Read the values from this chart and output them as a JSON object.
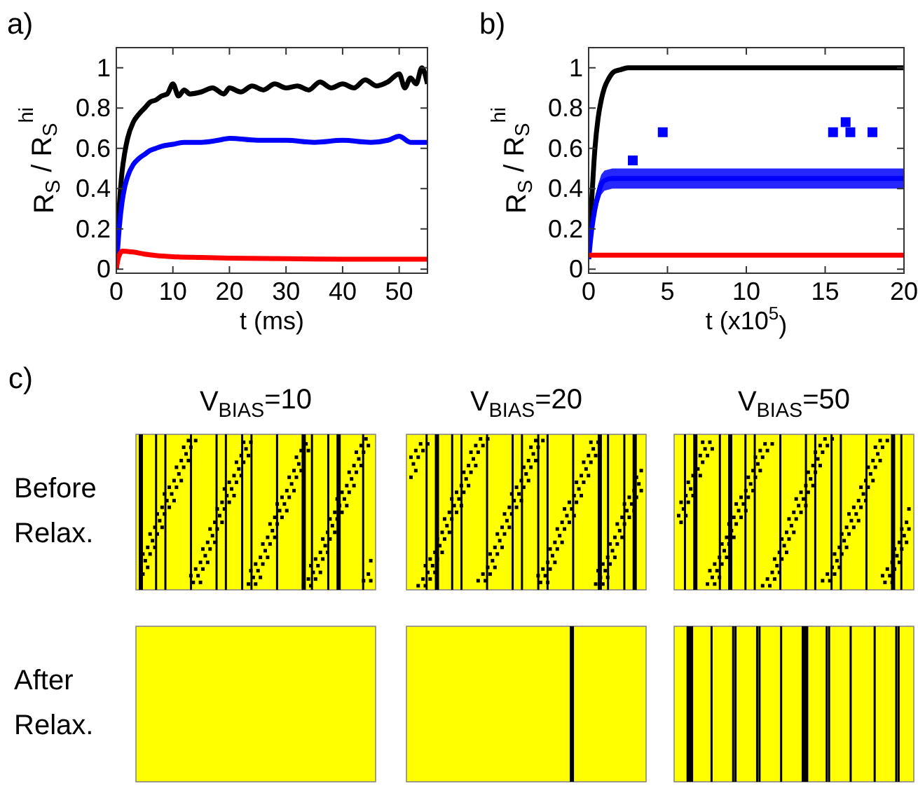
{
  "chart_data": [
    {
      "type": "line",
      "title": "a)",
      "xlabel": "t (ms)",
      "ylabel": "R$_{S}$ / R$_{S}$$^{hi}$",
      "xlim": [
        0,
        55
      ],
      "ylim": [
        -0.02,
        1.1
      ],
      "xticks": [
        0,
        10,
        20,
        30,
        40,
        50
      ],
      "yticks": [
        0,
        0.2,
        0.4,
        0.6,
        0.8,
        1
      ],
      "grid": false,
      "line_style": "solid",
      "series": [
        {
          "color": "#000000",
          "x": [
            0,
            0.5,
            1,
            1.5,
            2,
            3,
            4,
            5,
            6,
            7,
            8,
            9,
            10,
            11,
            12,
            13,
            15,
            17,
            19,
            20,
            22,
            24,
            26,
            28,
            30,
            32,
            34,
            36,
            38,
            40,
            42,
            44,
            46,
            48,
            50,
            51,
            52,
            53,
            54,
            55
          ],
          "values": [
            0,
            0.3,
            0.48,
            0.58,
            0.65,
            0.73,
            0.77,
            0.8,
            0.83,
            0.84,
            0.86,
            0.87,
            0.92,
            0.86,
            0.89,
            0.87,
            0.88,
            0.9,
            0.87,
            0.9,
            0.88,
            0.91,
            0.89,
            0.92,
            0.9,
            0.91,
            0.89,
            0.93,
            0.9,
            0.92,
            0.9,
            0.94,
            0.91,
            0.93,
            0.97,
            0.9,
            0.95,
            0.92,
            1.0,
            0.92
          ]
        },
        {
          "color": "#0000ff",
          "x": [
            0,
            0.5,
            1,
            1.5,
            2,
            3,
            4,
            5,
            6,
            7,
            8,
            10,
            12,
            15,
            18,
            20,
            25,
            30,
            35,
            40,
            45,
            48,
            50,
            52,
            55
          ],
          "values": [
            0,
            0.2,
            0.33,
            0.41,
            0.46,
            0.52,
            0.55,
            0.57,
            0.59,
            0.6,
            0.61,
            0.62,
            0.63,
            0.63,
            0.64,
            0.65,
            0.64,
            0.64,
            0.63,
            0.64,
            0.63,
            0.64,
            0.66,
            0.63,
            0.63
          ]
        },
        {
          "color": "#ff0000",
          "x": [
            0,
            0.3,
            0.7,
            1,
            2,
            3,
            5,
            7,
            10,
            15,
            20,
            30,
            40,
            55
          ],
          "values": [
            0,
            0.05,
            0.08,
            0.09,
            0.088,
            0.085,
            0.075,
            0.068,
            0.062,
            0.058,
            0.055,
            0.052,
            0.05,
            0.05
          ]
        }
      ]
    },
    {
      "type": "line",
      "title": "b)",
      "xlabel": "t (x10$^{5}$)",
      "ylabel": "R$_{S}$ / R$_{S}$$^{hi}$",
      "xlim": [
        0,
        20
      ],
      "ylim": [
        -0.02,
        1.1
      ],
      "xticks": [
        0,
        5,
        10,
        15,
        20
      ],
      "yticks": [
        0,
        0.2,
        0.4,
        0.6,
        0.8,
        1
      ],
      "grid": false,
      "line_style": "solid",
      "series": [
        {
          "color": "#000000",
          "x": [
            0,
            0.2,
            0.4,
            0.6,
            0.8,
            1,
            1.3,
            1.6,
            2,
            2.5,
            3,
            5,
            10,
            15,
            20
          ],
          "values": [
            0.05,
            0.35,
            0.6,
            0.75,
            0.84,
            0.9,
            0.95,
            0.98,
            0.99,
            1,
            1,
            1,
            1,
            1,
            1
          ]
        },
        {
          "color": "#0000ff",
          "x": [
            0,
            0.2,
            0.4,
            0.6,
            0.8,
            1,
            1.5,
            2,
            3,
            5,
            10,
            15,
            20
          ],
          "values": [
            0.05,
            0.2,
            0.3,
            0.37,
            0.42,
            0.44,
            0.45,
            0.45,
            0.45,
            0.45,
            0.45,
            0.45,
            0.45
          ],
          "lower": [
            0.05,
            0.15,
            0.25,
            0.32,
            0.37,
            0.39,
            0.4,
            0.4,
            0.4,
            0.4,
            0.4,
            0.4,
            0.4
          ],
          "upper": [
            0.05,
            0.25,
            0.35,
            0.42,
            0.47,
            0.49,
            0.5,
            0.5,
            0.5,
            0.5,
            0.5,
            0.5,
            0.5
          ]
        },
        {
          "type": "scatter",
          "marker": "square",
          "color": "#0000ff",
          "x": [
            2.8,
            4.7,
            15.5,
            16.3,
            16.6,
            18
          ],
          "values": [
            0.54,
            0.68,
            0.68,
            0.73,
            0.68,
            0.68
          ]
        },
        {
          "color": "#ff0000",
          "x": [
            0,
            20
          ],
          "values": [
            0.07,
            0.07
          ]
        }
      ]
    },
    {
      "type": "other",
      "title": "c)",
      "annotations": [
        "V$_{BIAS}$=10",
        "V$_{BIAS}$=20",
        "V$_{BIAS}$=50",
        "Before Relax.",
        "After Relax."
      ]
    }
  ]
}
